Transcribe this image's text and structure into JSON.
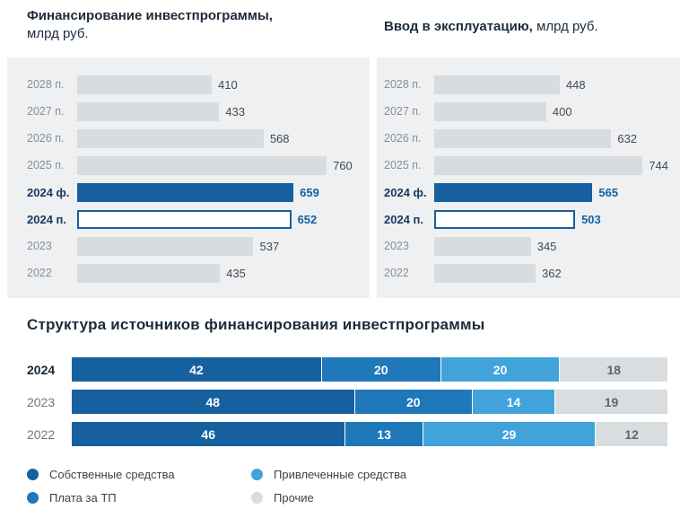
{
  "chart_data": [
    {
      "type": "bar",
      "orientation": "horizontal",
      "title": "Финансирование инвестпрограммы,",
      "title_unit": "млрд руб.",
      "categories": [
        "2028 п.",
        "2027 п.",
        "2026 п.",
        "2025 п.",
        "2024 ф.",
        "2024 п.",
        "2023",
        "2022"
      ],
      "values": [
        410,
        433,
        568,
        760,
        659,
        652,
        537,
        435
      ],
      "highlight_fact": "2024 ф.",
      "highlight_plan": "2024 п.",
      "xlim": [
        0,
        760
      ],
      "grid": false,
      "legend_position": "none"
    },
    {
      "type": "bar",
      "orientation": "horizontal",
      "title": "Ввод в эксплуатацию,",
      "title_unit": "млрд руб.",
      "categories": [
        "2028 п.",
        "2027 п.",
        "2026 п.",
        "2025 п.",
        "2024 ф.",
        "2024 п.",
        "2023",
        "2022"
      ],
      "values": [
        448,
        400,
        632,
        744,
        565,
        503,
        345,
        362
      ],
      "highlight_fact": "2024 ф.",
      "highlight_plan": "2024 п.",
      "xlim": [
        0,
        744
      ],
      "grid": false,
      "legend_position": "none"
    },
    {
      "type": "bar",
      "stacked": true,
      "orientation": "horizontal",
      "title": "Структура источников финансирования инвестпрограммы",
      "categories": [
        "2024",
        "2023",
        "2022"
      ],
      "highlight_category": "2024",
      "series": [
        {
          "name": "Собственные средства",
          "color": "#1660a0",
          "text_color": "#ffffff",
          "values": [
            42,
            48,
            46
          ]
        },
        {
          "name": "Плата за ТП",
          "color": "#1e78ba",
          "text_color": "#ffffff",
          "values": [
            20,
            20,
            13
          ]
        },
        {
          "name": "Привлеченные средства",
          "color": "#41a3da",
          "text_color": "#ffffff",
          "values": [
            20,
            14,
            29
          ]
        },
        {
          "name": "Прочие",
          "color": "#d9dde0",
          "text_color": "#5d6873",
          "values": [
            18,
            19,
            12
          ]
        }
      ],
      "xlim": [
        0,
        100
      ],
      "grid": false,
      "legend_position": "bottom"
    }
  ],
  "legend": [
    {
      "label": "Собственные средства",
      "color": "#1660a0"
    },
    {
      "label": "Привлеченные средства",
      "color": "#41a3da"
    },
    {
      "label": "Плата за ТП",
      "color": "#1e78ba"
    },
    {
      "label": "Прочие",
      "color": "#d9dde0"
    }
  ],
  "colors": {
    "accent_blue": "#1660a0",
    "bar_gray": "#d8dcdf",
    "panel_bg": "#eef0f2",
    "title_navy": "#1d2b3a"
  }
}
